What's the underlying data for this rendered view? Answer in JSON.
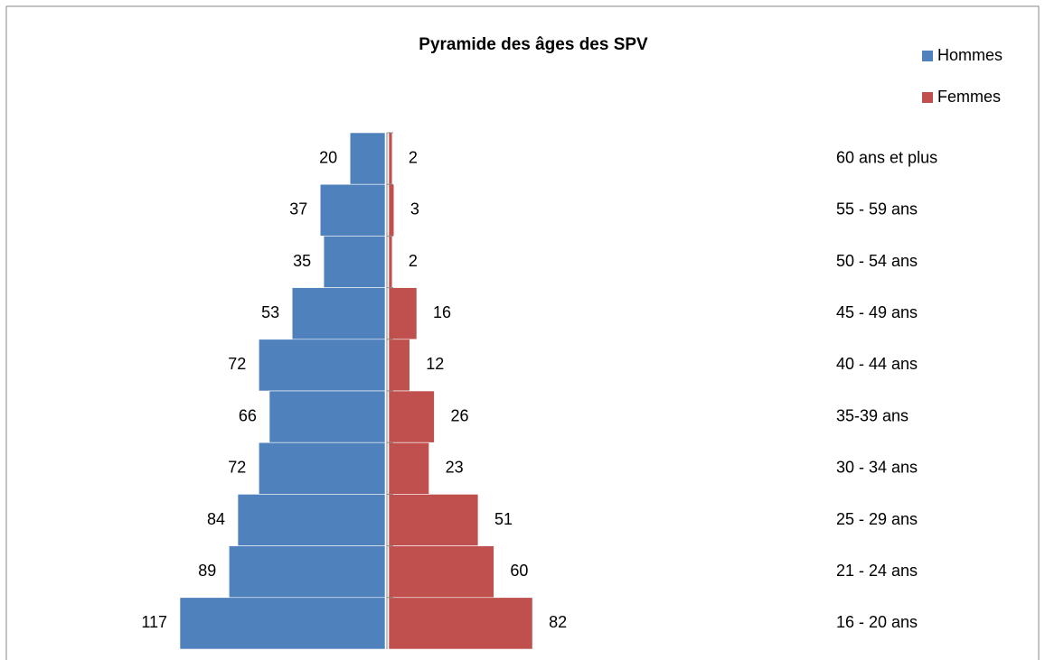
{
  "chart_data": {
    "type": "pyramid",
    "title": "Pyramide des âges des SPV",
    "categories": [
      "60 ans et plus",
      "55 - 59 ans",
      "50 - 54 ans",
      "45 - 49 ans",
      "40 - 44 ans",
      "35-39 ans",
      "30 - 34 ans",
      "25 - 29 ans",
      "21 - 24 ans",
      "16 - 20 ans"
    ],
    "series": [
      {
        "name": "Hommes",
        "color": "#4f81bd",
        "values": [
          20,
          37,
          35,
          53,
          72,
          66,
          72,
          84,
          89,
          117
        ]
      },
      {
        "name": "Femmes",
        "color": "#c0504d",
        "values": [
          2,
          3,
          2,
          16,
          12,
          26,
          23,
          51,
          60,
          82
        ]
      }
    ],
    "legend": "top-right"
  }
}
